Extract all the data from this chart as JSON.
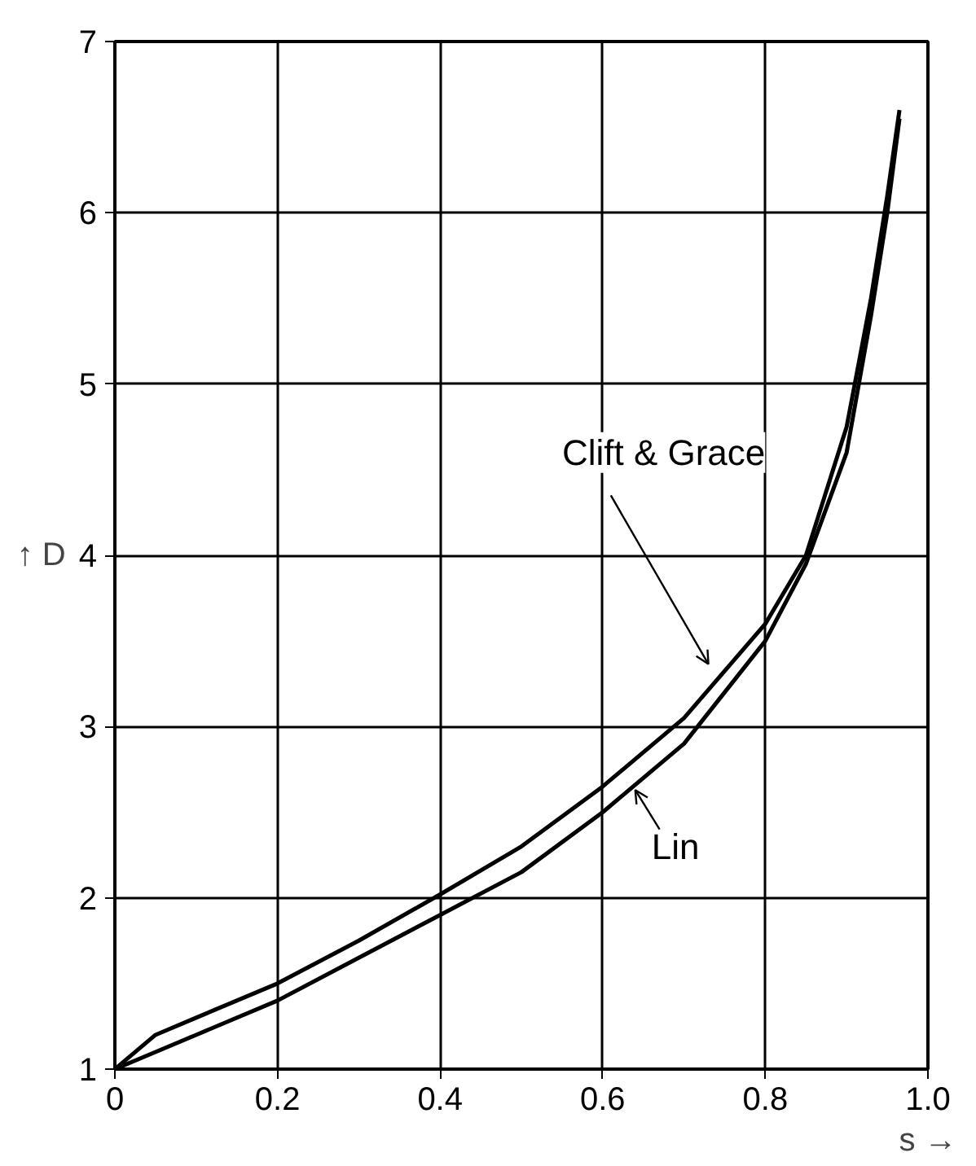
{
  "chart_data": {
    "type": "line",
    "xlabel": "s →",
    "ylabel": "↑ D",
    "x": [
      0,
      0.05,
      0.1,
      0.2,
      0.3,
      0.4,
      0.5,
      0.6,
      0.7,
      0.8,
      0.85,
      0.9,
      0.93,
      0.95,
      0.965
    ],
    "series": [
      {
        "name": "Clift & Grace",
        "color": "#000000",
        "values": [
          1,
          1.2,
          1.3,
          1.5,
          1.75,
          2.02,
          2.3,
          2.65,
          3.05,
          3.6,
          4.0,
          4.75,
          5.5,
          6.1,
          6.6
        ]
      },
      {
        "name": "Lin",
        "color": "#000000",
        "values": [
          1,
          1.1,
          1.2,
          1.4,
          1.65,
          1.9,
          2.15,
          2.5,
          2.9,
          3.5,
          3.95,
          4.6,
          5.4,
          6.0,
          6.55
        ]
      }
    ],
    "xlim": [
      0,
      1
    ],
    "ylim": [
      1,
      7
    ],
    "xticks": [
      0,
      0.2,
      0.4,
      0.6,
      0.8,
      {
        "value": 1,
        "label": "1.0"
      }
    ],
    "yticks": [
      1,
      2,
      3,
      4,
      5,
      6,
      7
    ],
    "grid": true,
    "marker": "none",
    "line_style": "solid"
  }
}
